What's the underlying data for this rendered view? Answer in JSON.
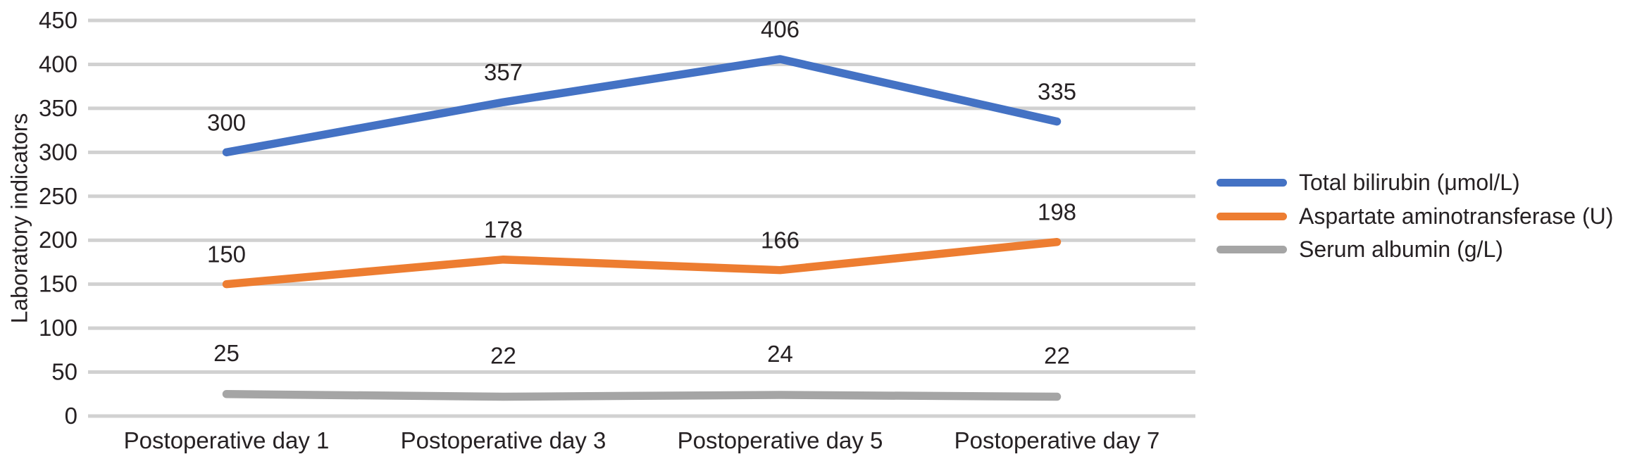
{
  "chart_data": {
    "type": "line",
    "title": "",
    "xlabel": "",
    "ylabel": "Laboratory indicators",
    "categories": [
      "Postoperative day 1",
      "Postoperative day 3",
      "Postoperative day 5",
      "Postoperative day 7"
    ],
    "series": [
      {
        "name": "Total bilirubin (μmol/L)",
        "color": "#4472C4",
        "values": [
          300,
          357,
          406,
          335
        ]
      },
      {
        "name": "Aspartate aminotransferase (U)",
        "color": "#ED7D31",
        "values": [
          150,
          178,
          166,
          198
        ]
      },
      {
        "name": "Serum albumin (g/L)",
        "color": "#A5A5A5",
        "values": [
          25,
          22,
          24,
          22
        ]
      }
    ],
    "ylim": [
      0,
      450
    ],
    "yticks": [
      0,
      50,
      100,
      150,
      200,
      250,
      300,
      350,
      400,
      450
    ],
    "grid": "horizontal",
    "legend_position": "right",
    "data_labels": true
  },
  "colors": {
    "text": "#262123",
    "gridline": "#D1D1D1",
    "background": "#FFFFFF"
  }
}
